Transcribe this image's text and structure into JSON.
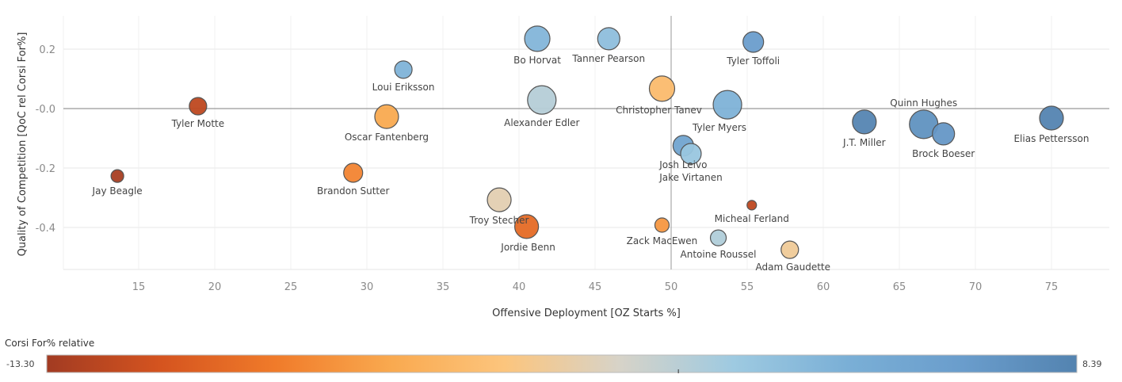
{
  "chart_data": {
    "type": "scatter",
    "xlabel": "Offensive Deployment [OZ Starts %]",
    "ylabel": "Quality of Competition [QoC rel Corsi For%]",
    "xlim": [
      10,
      77.2
    ],
    "ylim": [
      -0.54,
      0.37
    ],
    "xticks": [
      15,
      20,
      25,
      30,
      35,
      40,
      45,
      50,
      55,
      60,
      65,
      70,
      75
    ],
    "yticks": [
      {
        "v": 0.2,
        "label": "0.2"
      },
      {
        "v": 0,
        "label": "-0.0"
      },
      {
        "v": -0.2,
        "label": "-0.2"
      },
      {
        "v": -0.4,
        "label": "-0.4"
      }
    ],
    "reference_lines": {
      "x": 50,
      "y": 0
    },
    "grid": true,
    "color_legend": {
      "title": "Corsi For% relative",
      "min": -13.3,
      "max": 8.39,
      "min_label": "-13.30",
      "max_label": "8.39",
      "stops": [
        "#a23b22",
        "#d5541f",
        "#f07b2a",
        "#f9a94f",
        "#fcc57d",
        "#d7d3c8",
        "#9ecae1",
        "#7aafd6",
        "#6a9dcc",
        "#5383b0"
      ]
    },
    "points": [
      {
        "name": "Bo Horvat",
        "x": 41.2,
        "y": 0.235,
        "corsi_rel": 3.0,
        "size": 16
      },
      {
        "name": "Tanner Pearson",
        "x": 45.9,
        "y": 0.235,
        "corsi_rel": 2.2,
        "size": 14
      },
      {
        "name": "Tyler Toffoli",
        "x": 55.4,
        "y": 0.224,
        "corsi_rel": 6.0,
        "size": 13
      },
      {
        "name": "Loui Eriksson",
        "x": 32.4,
        "y": 0.131,
        "corsi_rel": 3.2,
        "size": 11
      },
      {
        "name": "Tyler Motte",
        "x": 18.9,
        "y": 0.008,
        "corsi_rel": -12.0,
        "size": 11
      },
      {
        "name": "Oscar Fantenberg",
        "x": 31.3,
        "y": -0.027,
        "corsi_rel": -6.0,
        "size": 15
      },
      {
        "name": "Alexander Edler",
        "x": 41.5,
        "y": 0.029,
        "corsi_rel": 0.2,
        "size": 18
      },
      {
        "name": "Christopher Tanev",
        "x": 49.4,
        "y": 0.067,
        "corsi_rel": -4.5,
        "size": 16
      },
      {
        "name": "Tyler Myers",
        "x": 53.7,
        "y": 0.013,
        "corsi_rel": 3.3,
        "size": 18
      },
      {
        "name": "J.T. Miller",
        "x": 62.7,
        "y": -0.045,
        "corsi_rel": 8.2,
        "size": 15
      },
      {
        "name": "Quinn Hughes",
        "x": 66.6,
        "y": -0.053,
        "corsi_rel": 7.0,
        "size": 18
      },
      {
        "name": "Brock Boeser",
        "x": 67.9,
        "y": -0.085,
        "corsi_rel": 6.5,
        "size": 14
      },
      {
        "name": "Elias Pettersson",
        "x": 75.0,
        "y": -0.032,
        "corsi_rel": 8.3,
        "size": 15
      },
      {
        "name": "Josh Leivo",
        "x": 50.8,
        "y": -0.125,
        "corsi_rel": 5.0,
        "size": 13
      },
      {
        "name": "Jake Virtanen",
        "x": 51.3,
        "y": -0.152,
        "corsi_rel": 1.5,
        "size": 13
      },
      {
        "name": "Jay Beagle",
        "x": 13.6,
        "y": -0.227,
        "corsi_rel": -13.0,
        "size": 8
      },
      {
        "name": "Brandon Sutter",
        "x": 29.1,
        "y": -0.216,
        "corsi_rel": -8.0,
        "size": 12
      },
      {
        "name": "Troy Stecher",
        "x": 38.7,
        "y": -0.307,
        "corsi_rel": -2.0,
        "size": 15
      },
      {
        "name": "Jordie Benn",
        "x": 40.5,
        "y": -0.397,
        "corsi_rel": -9.5,
        "size": 15
      },
      {
        "name": "Zack MacEwen",
        "x": 49.4,
        "y": -0.392,
        "corsi_rel": -7.0,
        "size": 9
      },
      {
        "name": "Micheal Ferland",
        "x": 55.3,
        "y": -0.325,
        "corsi_rel": -12.0,
        "size": 6
      },
      {
        "name": "Antoine Roussel",
        "x": 53.1,
        "y": -0.435,
        "corsi_rel": 0.4,
        "size": 10
      },
      {
        "name": "Adam Gaudette",
        "x": 57.8,
        "y": -0.475,
        "corsi_rel": -2.8,
        "size": 11
      }
    ]
  }
}
